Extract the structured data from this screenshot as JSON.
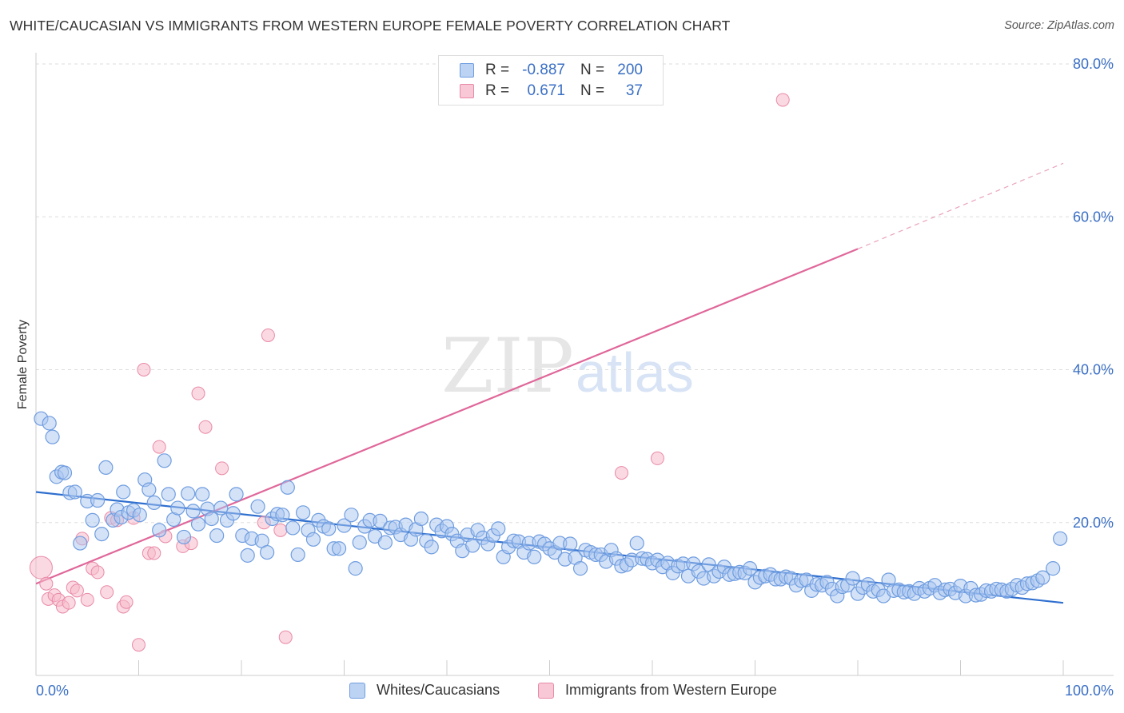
{
  "title": "WHITE/CAUCASIAN VS IMMIGRANTS FROM WESTERN EUROPE FEMALE POVERTY CORRELATION CHART",
  "source": "Source: ZipAtlas.com",
  "watermark": {
    "zip": "ZIP",
    "atlas": "atlas"
  },
  "legend_top": {
    "rows": [
      {
        "r_label": "R =",
        "r_value": "-0.887",
        "n_label": "N =",
        "n_value": "200"
      },
      {
        "r_label": "R =",
        "r_value": "0.671",
        "n_label": "N =",
        "n_value": "37"
      }
    ]
  },
  "colors": {
    "blue_fill": "#a9c6ef",
    "blue_stroke": "#6f9de0",
    "blue_line": "#2f6fcf",
    "pink_fill": "#f5b9cb",
    "pink_stroke": "#e98aa7",
    "pink_line": "#e0679a",
    "tick_text": "#3a6fc4",
    "grid": "#dddddd"
  },
  "chart_data": {
    "type": "scatter",
    "title": "WHITE/CAUCASIAN VS IMMIGRANTS FROM WESTERN EUROPE FEMALE POVERTY CORRELATION CHART",
    "xlabel": "",
    "ylabel": "Female Poverty",
    "xlim": [
      0,
      100
    ],
    "ylim": [
      0,
      80
    ],
    "x_tick_labels": [
      "0.0%",
      "100.0%"
    ],
    "y_tick_labels": [
      "20.0%",
      "40.0%",
      "60.0%",
      "80.0%"
    ],
    "y_tick_values": [
      20,
      40,
      60,
      80
    ],
    "grid": true,
    "legend": "bottom-center",
    "series": [
      {
        "name": "Whites/Caucasians",
        "color": "#6f9de0",
        "R": -0.887,
        "N": 200,
        "trend": {
          "x": [
            0,
            100
          ],
          "y": [
            24.0,
            9.5
          ]
        },
        "points": [
          [
            0.5,
            33.6
          ],
          [
            1.3,
            33.0
          ],
          [
            1.6,
            31.2
          ],
          [
            2.0,
            26.0
          ],
          [
            2.5,
            26.6
          ],
          [
            2.8,
            26.5
          ],
          [
            3.3,
            23.9
          ],
          [
            3.8,
            24.0
          ],
          [
            4.3,
            17.3
          ],
          [
            5.0,
            22.8
          ],
          [
            5.5,
            20.3
          ],
          [
            6.0,
            22.9
          ],
          [
            6.4,
            18.5
          ],
          [
            6.8,
            27.2
          ],
          [
            7.5,
            20.3
          ],
          [
            7.9,
            21.7
          ],
          [
            8.3,
            20.7
          ],
          [
            8.5,
            24.0
          ],
          [
            9.0,
            21.3
          ],
          [
            9.5,
            21.6
          ],
          [
            10.1,
            21.0
          ],
          [
            10.6,
            25.6
          ],
          [
            11.0,
            24.3
          ],
          [
            11.5,
            22.6
          ],
          [
            12.0,
            19.0
          ],
          [
            12.5,
            28.1
          ],
          [
            12.9,
            23.7
          ],
          [
            13.4,
            20.4
          ],
          [
            13.8,
            21.9
          ],
          [
            14.4,
            18.1
          ],
          [
            14.8,
            23.8
          ],
          [
            15.3,
            21.5
          ],
          [
            15.8,
            19.8
          ],
          [
            16.2,
            23.7
          ],
          [
            16.7,
            21.8
          ],
          [
            17.1,
            20.5
          ],
          [
            17.6,
            18.3
          ],
          [
            18.0,
            21.9
          ],
          [
            18.6,
            20.3
          ],
          [
            19.2,
            21.2
          ],
          [
            19.5,
            23.7
          ],
          [
            20.1,
            18.3
          ],
          [
            20.6,
            15.7
          ],
          [
            21.0,
            17.9
          ],
          [
            21.6,
            22.1
          ],
          [
            22.0,
            17.6
          ],
          [
            22.5,
            16.1
          ],
          [
            23.0,
            20.5
          ],
          [
            23.5,
            21.1
          ],
          [
            24.0,
            21.0
          ],
          [
            24.5,
            24.6
          ],
          [
            25.0,
            19.3
          ],
          [
            25.5,
            15.8
          ],
          [
            26.0,
            21.3
          ],
          [
            26.5,
            19.0
          ],
          [
            27.0,
            17.8
          ],
          [
            27.5,
            20.3
          ],
          [
            28.0,
            19.5
          ],
          [
            28.5,
            19.2
          ],
          [
            29.0,
            16.6
          ],
          [
            29.5,
            16.6
          ],
          [
            30.0,
            19.6
          ],
          [
            30.7,
            21.0
          ],
          [
            31.1,
            14.0
          ],
          [
            31.5,
            17.4
          ],
          [
            32.0,
            19.5
          ],
          [
            32.5,
            20.3
          ],
          [
            33.0,
            18.2
          ],
          [
            33.5,
            20.2
          ],
          [
            34.0,
            17.4
          ],
          [
            34.5,
            19.3
          ],
          [
            35.0,
            19.4
          ],
          [
            35.5,
            18.4
          ],
          [
            36.0,
            19.7
          ],
          [
            36.5,
            17.8
          ],
          [
            37.0,
            19.1
          ],
          [
            37.5,
            20.5
          ],
          [
            38.0,
            17.6
          ],
          [
            38.5,
            16.8
          ],
          [
            39.0,
            19.7
          ],
          [
            39.5,
            18.9
          ],
          [
            40.0,
            19.5
          ],
          [
            40.5,
            18.5
          ],
          [
            41.0,
            17.6
          ],
          [
            41.5,
            16.3
          ],
          [
            42.0,
            18.4
          ],
          [
            42.5,
            17.0
          ],
          [
            43.0,
            19.0
          ],
          [
            43.5,
            18.0
          ],
          [
            44.0,
            17.2
          ],
          [
            44.5,
            18.3
          ],
          [
            45.0,
            19.2
          ],
          [
            45.5,
            15.5
          ],
          [
            46.0,
            16.8
          ],
          [
            46.5,
            17.6
          ],
          [
            47.0,
            17.5
          ],
          [
            47.5,
            16.1
          ],
          [
            48.0,
            17.3
          ],
          [
            48.5,
            15.5
          ],
          [
            49.0,
            17.5
          ],
          [
            49.5,
            17.2
          ],
          [
            50.0,
            16.6
          ],
          [
            50.5,
            16.1
          ],
          [
            51.0,
            17.3
          ],
          [
            51.5,
            15.2
          ],
          [
            52.0,
            17.2
          ],
          [
            52.5,
            15.4
          ],
          [
            53.0,
            14.0
          ],
          [
            53.5,
            16.4
          ],
          [
            54.0,
            16.1
          ],
          [
            54.5,
            15.8
          ],
          [
            55.0,
            15.8
          ],
          [
            55.5,
            14.9
          ],
          [
            56.0,
            16.4
          ],
          [
            56.5,
            15.3
          ],
          [
            57.0,
            14.3
          ],
          [
            57.5,
            14.5
          ],
          [
            58.0,
            15.1
          ],
          [
            58.5,
            17.3
          ],
          [
            59.0,
            15.3
          ],
          [
            59.5,
            15.2
          ],
          [
            60.0,
            14.7
          ],
          [
            60.5,
            15.1
          ],
          [
            61.0,
            14.2
          ],
          [
            61.5,
            14.7
          ],
          [
            62.0,
            13.4
          ],
          [
            62.5,
            14.3
          ],
          [
            63.0,
            14.6
          ],
          [
            63.5,
            13.0
          ],
          [
            64.0,
            14.6
          ],
          [
            64.5,
            13.6
          ],
          [
            65.0,
            12.7
          ],
          [
            65.5,
            14.5
          ],
          [
            66.0,
            13.0
          ],
          [
            66.5,
            13.6
          ],
          [
            67.0,
            14.2
          ],
          [
            67.5,
            13.2
          ],
          [
            68.0,
            13.3
          ],
          [
            68.5,
            13.5
          ],
          [
            69.0,
            13.4
          ],
          [
            69.5,
            14.0
          ],
          [
            70.0,
            12.2
          ],
          [
            70.5,
            12.8
          ],
          [
            71.0,
            13.0
          ],
          [
            71.5,
            13.2
          ],
          [
            72.0,
            12.6
          ],
          [
            72.5,
            12.6
          ],
          [
            73.0,
            12.9
          ],
          [
            73.5,
            12.7
          ],
          [
            74.0,
            11.8
          ],
          [
            74.5,
            12.4
          ],
          [
            75.0,
            12.5
          ],
          [
            75.5,
            11.1
          ],
          [
            76.0,
            11.9
          ],
          [
            76.5,
            11.8
          ],
          [
            77.0,
            12.2
          ],
          [
            77.5,
            11.3
          ],
          [
            78.0,
            10.4
          ],
          [
            78.5,
            11.6
          ],
          [
            79.0,
            11.8
          ],
          [
            79.5,
            12.7
          ],
          [
            80.0,
            10.7
          ],
          [
            80.5,
            11.5
          ],
          [
            81.0,
            11.9
          ],
          [
            81.5,
            11.0
          ],
          [
            82.0,
            11.2
          ],
          [
            82.5,
            10.4
          ],
          [
            83.0,
            12.5
          ],
          [
            83.5,
            11.1
          ],
          [
            84.0,
            11.2
          ],
          [
            84.5,
            10.9
          ],
          [
            85.0,
            11.0
          ],
          [
            85.5,
            10.7
          ],
          [
            86.0,
            11.4
          ],
          [
            86.5,
            11.0
          ],
          [
            87.0,
            11.4
          ],
          [
            87.5,
            11.8
          ],
          [
            88.0,
            10.8
          ],
          [
            88.5,
            11.2
          ],
          [
            89.0,
            11.3
          ],
          [
            89.5,
            10.8
          ],
          [
            90.0,
            11.7
          ],
          [
            90.5,
            10.4
          ],
          [
            91.0,
            11.4
          ],
          [
            91.5,
            10.5
          ],
          [
            92.0,
            10.6
          ],
          [
            92.5,
            11.1
          ],
          [
            93.0,
            11.0
          ],
          [
            93.5,
            11.3
          ],
          [
            94.0,
            11.2
          ],
          [
            94.5,
            11.0
          ],
          [
            95.0,
            11.3
          ],
          [
            95.5,
            11.8
          ],
          [
            96.0,
            11.5
          ],
          [
            96.5,
            12.0
          ],
          [
            97.0,
            12.1
          ],
          [
            97.5,
            12.4
          ],
          [
            98.0,
            12.8
          ],
          [
            99.0,
            14.0
          ],
          [
            99.7,
            17.9
          ]
        ]
      },
      {
        "name": "Immigrants from Western Europe",
        "color": "#e98aa7",
        "R": 0.671,
        "N": 37,
        "trend": {
          "x": [
            0,
            80
          ],
          "y": [
            12.0,
            55.8
          ],
          "dashed_to": {
            "x": 100,
            "y": 67.0
          }
        },
        "points": [
          [
            0.5,
            14.1,
            "large"
          ],
          [
            1.0,
            12.0
          ],
          [
            1.2,
            10.0
          ],
          [
            1.8,
            10.5
          ],
          [
            2.2,
            9.9
          ],
          [
            2.6,
            9.0
          ],
          [
            3.2,
            9.5
          ],
          [
            3.6,
            11.5
          ],
          [
            4.0,
            11.1
          ],
          [
            4.5,
            17.9
          ],
          [
            5.0,
            9.9
          ],
          [
            5.5,
            14.0
          ],
          [
            6.0,
            13.5
          ],
          [
            6.9,
            10.9
          ],
          [
            7.3,
            20.6
          ],
          [
            7.9,
            20.3
          ],
          [
            8.5,
            9.0
          ],
          [
            8.8,
            9.6
          ],
          [
            9.5,
            20.6
          ],
          [
            10.0,
            4.0
          ],
          [
            10.5,
            40.0
          ],
          [
            11.0,
            16.0
          ],
          [
            11.5,
            16.0
          ],
          [
            12.0,
            29.9
          ],
          [
            12.6,
            18.2
          ],
          [
            14.3,
            16.9
          ],
          [
            15.1,
            17.3
          ],
          [
            15.8,
            36.9
          ],
          [
            16.5,
            32.5
          ],
          [
            18.1,
            27.1
          ],
          [
            22.2,
            20.0
          ],
          [
            22.6,
            44.5
          ],
          [
            23.8,
            19.0
          ],
          [
            24.3,
            5.0
          ],
          [
            57.0,
            26.5
          ],
          [
            60.5,
            28.4
          ],
          [
            72.7,
            75.3
          ]
        ]
      }
    ]
  },
  "bottom_legend": [
    {
      "label": "Whites/Caucasians"
    },
    {
      "label": "Immigrants from Western Europe"
    }
  ]
}
